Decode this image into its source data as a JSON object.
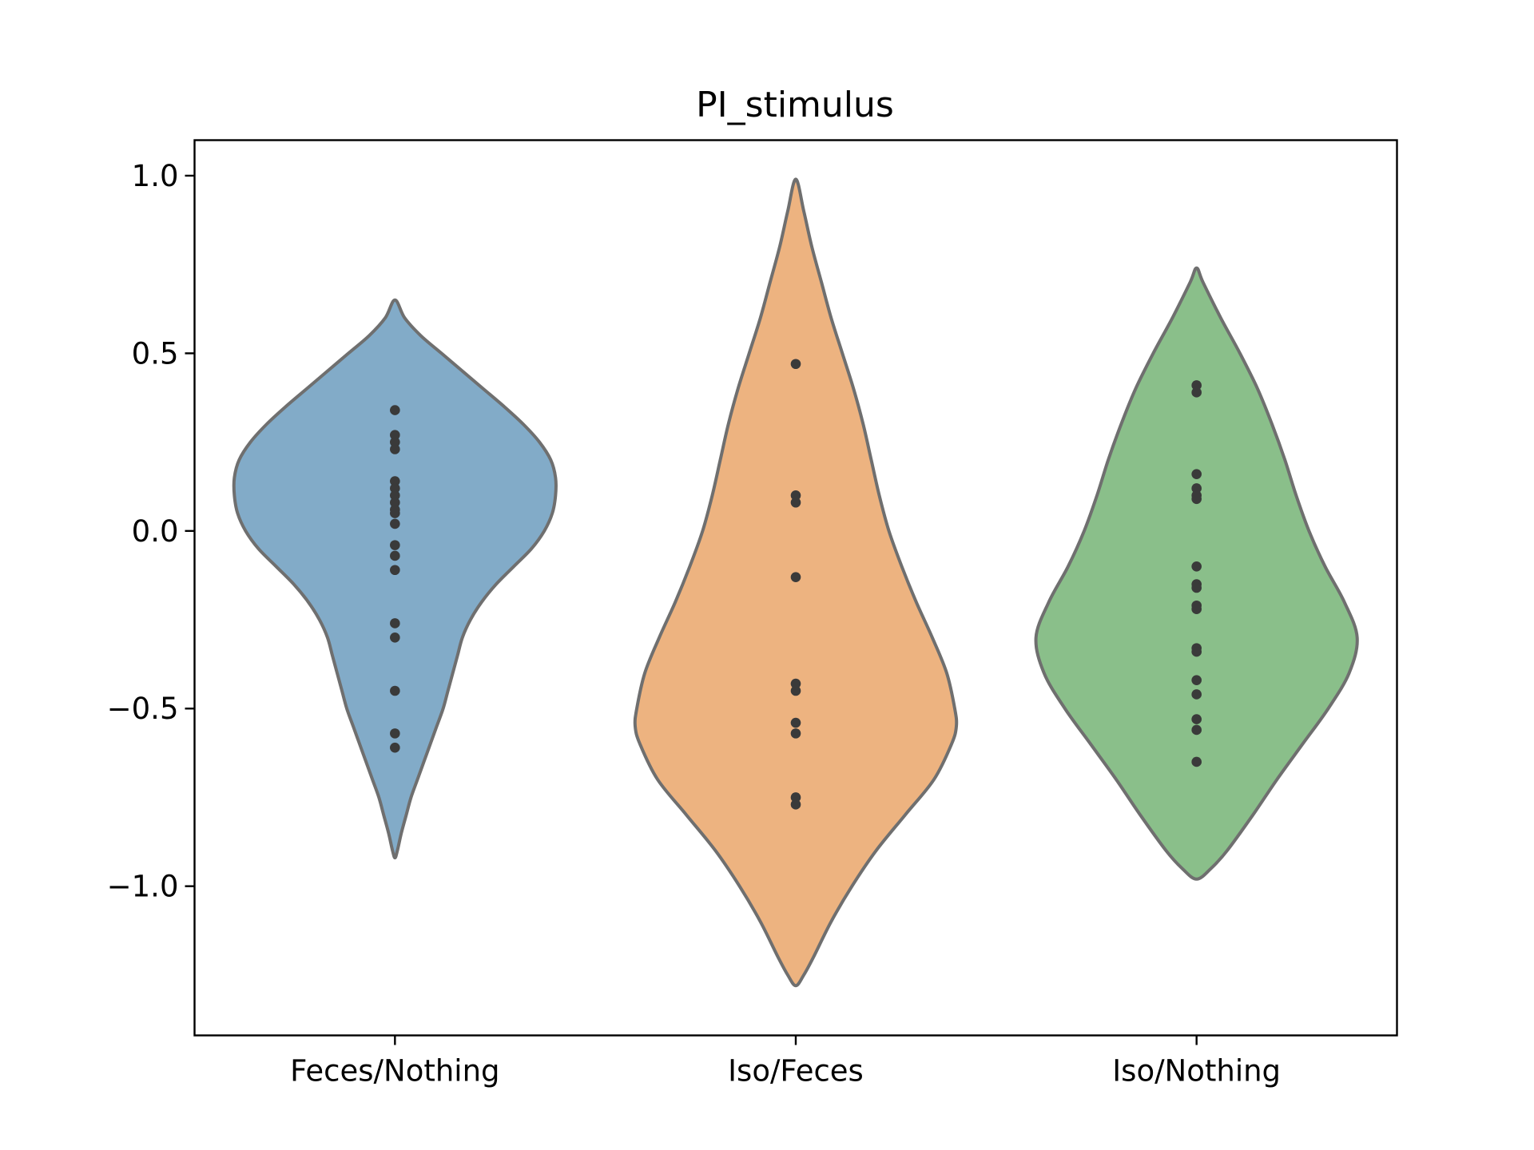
{
  "chart_data": {
    "type": "violin",
    "title": "PI_stimulus",
    "xlabel": "",
    "ylabel": "",
    "ylim": [
      -1.42,
      1.1
    ],
    "yticks": [
      1.0,
      0.5,
      0.0,
      -0.5,
      -1.0
    ],
    "ytick_labels": [
      "1.0",
      "0.5",
      "0.0",
      "−0.5",
      "−1.0"
    ],
    "categories": [
      "Feces/Nothing",
      "Iso/Feces",
      "Iso/Nothing"
    ],
    "grid": false,
    "point_color": "#3a3a3a",
    "series": [
      {
        "category": "Feces/Nothing",
        "color": "#82abc8",
        "kde_range": [
          -0.92,
          0.65
        ],
        "points": [
          0.34,
          0.27,
          0.25,
          0.23,
          0.14,
          0.12,
          0.1,
          0.08,
          0.06,
          0.05,
          0.02,
          -0.04,
          -0.07,
          -0.11,
          -0.26,
          -0.3,
          -0.45,
          -0.57,
          -0.61
        ],
        "profile": [
          [
            0.65,
            0.0
          ],
          [
            0.6,
            0.06
          ],
          [
            0.55,
            0.16
          ],
          [
            0.5,
            0.29
          ],
          [
            0.45,
            0.42
          ],
          [
            0.4,
            0.55
          ],
          [
            0.35,
            0.68
          ],
          [
            0.3,
            0.8
          ],
          [
            0.25,
            0.9
          ],
          [
            0.2,
            0.97
          ],
          [
            0.15,
            1.0
          ],
          [
            0.1,
            1.0
          ],
          [
            0.05,
            0.98
          ],
          [
            0.0,
            0.93
          ],
          [
            -0.05,
            0.85
          ],
          [
            -0.1,
            0.74
          ],
          [
            -0.15,
            0.63
          ],
          [
            -0.2,
            0.54
          ],
          [
            -0.25,
            0.47
          ],
          [
            -0.3,
            0.42
          ],
          [
            -0.35,
            0.39
          ],
          [
            -0.4,
            0.36
          ],
          [
            -0.45,
            0.33
          ],
          [
            -0.5,
            0.3
          ],
          [
            -0.55,
            0.26
          ],
          [
            -0.6,
            0.22
          ],
          [
            -0.65,
            0.18
          ],
          [
            -0.7,
            0.14
          ],
          [
            -0.75,
            0.1
          ],
          [
            -0.8,
            0.07
          ],
          [
            -0.85,
            0.04
          ],
          [
            -0.9,
            0.015
          ],
          [
            -0.92,
            0.0
          ]
        ]
      },
      {
        "category": "Iso/Feces",
        "color": "#edb380",
        "kde_range": [
          -1.28,
          0.99
        ],
        "points": [
          0.47,
          0.1,
          0.08,
          -0.13,
          -0.43,
          -0.45,
          -0.54,
          -0.57,
          -0.75,
          -0.77
        ],
        "profile": [
          [
            0.99,
            0.0
          ],
          [
            0.9,
            0.05
          ],
          [
            0.8,
            0.1
          ],
          [
            0.7,
            0.16
          ],
          [
            0.6,
            0.22
          ],
          [
            0.5,
            0.29
          ],
          [
            0.4,
            0.36
          ],
          [
            0.3,
            0.42
          ],
          [
            0.2,
            0.47
          ],
          [
            0.1,
            0.52
          ],
          [
            0.0,
            0.58
          ],
          [
            -0.1,
            0.66
          ],
          [
            -0.2,
            0.75
          ],
          [
            -0.3,
            0.85
          ],
          [
            -0.4,
            0.94
          ],
          [
            -0.5,
            0.99
          ],
          [
            -0.55,
            1.0
          ],
          [
            -0.6,
            0.97
          ],
          [
            -0.7,
            0.86
          ],
          [
            -0.8,
            0.68
          ],
          [
            -0.9,
            0.5
          ],
          [
            -1.0,
            0.35
          ],
          [
            -1.1,
            0.22
          ],
          [
            -1.2,
            0.11
          ],
          [
            -1.25,
            0.05
          ],
          [
            -1.28,
            0.0
          ]
        ]
      },
      {
        "category": "Iso/Nothing",
        "color": "#8abf8a",
        "kde_range": [
          -0.98,
          0.74
        ],
        "points": [
          0.41,
          0.39,
          0.16,
          0.12,
          0.1,
          0.09,
          -0.1,
          -0.15,
          -0.16,
          -0.21,
          -0.22,
          -0.33,
          -0.34,
          -0.42,
          -0.46,
          -0.53,
          -0.56,
          -0.65
        ],
        "profile": [
          [
            0.74,
            0.0
          ],
          [
            0.7,
            0.04
          ],
          [
            0.6,
            0.15
          ],
          [
            0.5,
            0.27
          ],
          [
            0.4,
            0.38
          ],
          [
            0.3,
            0.47
          ],
          [
            0.2,
            0.55
          ],
          [
            0.1,
            0.62
          ],
          [
            0.0,
            0.7
          ],
          [
            -0.1,
            0.8
          ],
          [
            -0.2,
            0.92
          ],
          [
            -0.3,
            1.0
          ],
          [
            -0.4,
            0.95
          ],
          [
            -0.5,
            0.82
          ],
          [
            -0.6,
            0.66
          ],
          [
            -0.7,
            0.5
          ],
          [
            -0.8,
            0.35
          ],
          [
            -0.9,
            0.19
          ],
          [
            -0.95,
            0.09
          ],
          [
            -0.98,
            0.0
          ]
        ]
      }
    ]
  }
}
